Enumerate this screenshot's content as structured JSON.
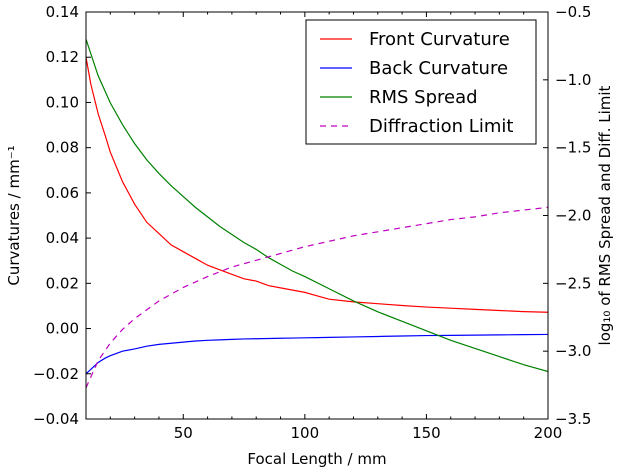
{
  "chart_data": {
    "type": "line",
    "title": "",
    "xlabel": "Focal Length / mm",
    "ylabel_left": "Curvatures / mm⁻¹",
    "ylabel_right": "log₁₀ of RMS Spread and Diff. Limit",
    "xlim": [
      10,
      200
    ],
    "ylim_left": [
      -0.04,
      0.14
    ],
    "ylim_right": [
      -3.5,
      -0.5
    ],
    "x_ticks": [
      50,
      100,
      150,
      200
    ],
    "y_ticks_left": [
      -0.04,
      -0.02,
      0.0,
      0.02,
      0.04,
      0.06,
      0.08,
      0.1,
      0.12,
      0.14
    ],
    "y_ticks_left_labels": [
      "−0.04",
      "−0.02",
      "0.00",
      "0.02",
      "0.04",
      "0.06",
      "0.08",
      "0.10",
      "0.12",
      "0.14"
    ],
    "y_ticks_right": [
      -3.5,
      -3.0,
      -2.5,
      -2.0,
      -1.5,
      -1.0,
      -0.5
    ],
    "y_ticks_right_labels": [
      "−3.5",
      "−3.0",
      "−2.5",
      "−2.0",
      "−1.5",
      "−1.0",
      "−0.5"
    ],
    "grid": false,
    "legend_placement": "top-right",
    "series": [
      {
        "name": "Front Curvature",
        "axis": "left",
        "color": "#ff0000",
        "dash": "solid",
        "x": [
          10,
          12,
          15,
          18,
          20,
          25,
          30,
          35,
          40,
          45,
          50,
          55,
          60,
          65,
          70,
          75,
          80,
          85,
          90,
          95,
          100,
          105,
          110,
          120,
          130,
          140,
          150,
          160,
          170,
          180,
          190,
          200
        ],
        "y": [
          0.12,
          0.108,
          0.095,
          0.085,
          0.078,
          0.065,
          0.055,
          0.047,
          0.042,
          0.037,
          0.034,
          0.031,
          0.028,
          0.026,
          0.024,
          0.022,
          0.021,
          0.019,
          0.018,
          0.017,
          0.016,
          0.0145,
          0.013,
          0.0118,
          0.011,
          0.0102,
          0.0095,
          0.009,
          0.0085,
          0.008,
          0.0075,
          0.0072
        ]
      },
      {
        "name": "Back Curvature",
        "axis": "left",
        "color": "#0000ff",
        "dash": "solid",
        "x": [
          10,
          12,
          15,
          18,
          20,
          25,
          30,
          35,
          40,
          45,
          50,
          55,
          60,
          65,
          70,
          75,
          80,
          85,
          90,
          95,
          100,
          105,
          110,
          120,
          130,
          140,
          150,
          160,
          170,
          180,
          190,
          200
        ],
        "y": [
          -0.02,
          -0.018,
          -0.015,
          -0.013,
          -0.012,
          -0.01,
          -0.009,
          -0.0078,
          -0.007,
          -0.0065,
          -0.006,
          -0.0055,
          -0.0052,
          -0.005,
          -0.0048,
          -0.0046,
          -0.0045,
          -0.0044,
          -0.0043,
          -0.0042,
          -0.0041,
          -0.004,
          -0.0039,
          -0.0037,
          -0.0035,
          -0.0033,
          -0.0031,
          -0.003,
          -0.0029,
          -0.0028,
          -0.0027,
          -0.0026
        ]
      },
      {
        "name": "RMS Spread",
        "axis": "right",
        "color": "#008000",
        "dash": "solid",
        "x": [
          10,
          15,
          20,
          25,
          30,
          35,
          40,
          45,
          50,
          55,
          60,
          65,
          70,
          75,
          80,
          85,
          90,
          95,
          100,
          110,
          120,
          130,
          140,
          150,
          160,
          170,
          180,
          190,
          200
        ],
        "y": [
          -0.7,
          -0.97,
          -1.17,
          -1.33,
          -1.47,
          -1.59,
          -1.69,
          -1.78,
          -1.86,
          -1.94,
          -2.01,
          -2.08,
          -2.14,
          -2.2,
          -2.25,
          -2.31,
          -2.36,
          -2.41,
          -2.45,
          -2.54,
          -2.63,
          -2.71,
          -2.78,
          -2.85,
          -2.92,
          -2.98,
          -3.04,
          -3.1,
          -3.15
        ]
      },
      {
        "name": "Diffraction Limit",
        "axis": "right",
        "color": "#bf00bf",
        "dash": "dashed",
        "x": [
          10,
          15,
          20,
          25,
          30,
          40,
          50,
          60,
          70,
          80,
          90,
          100,
          110,
          120,
          130,
          140,
          150,
          160,
          170,
          180,
          190,
          200
        ],
        "y": [
          -3.27,
          -3.07,
          -2.94,
          -2.84,
          -2.76,
          -2.63,
          -2.53,
          -2.45,
          -2.38,
          -2.33,
          -2.28,
          -2.23,
          -2.19,
          -2.15,
          -2.12,
          -2.09,
          -2.06,
          -2.03,
          -2.01,
          -1.98,
          -1.96,
          -1.94
        ]
      }
    ]
  }
}
